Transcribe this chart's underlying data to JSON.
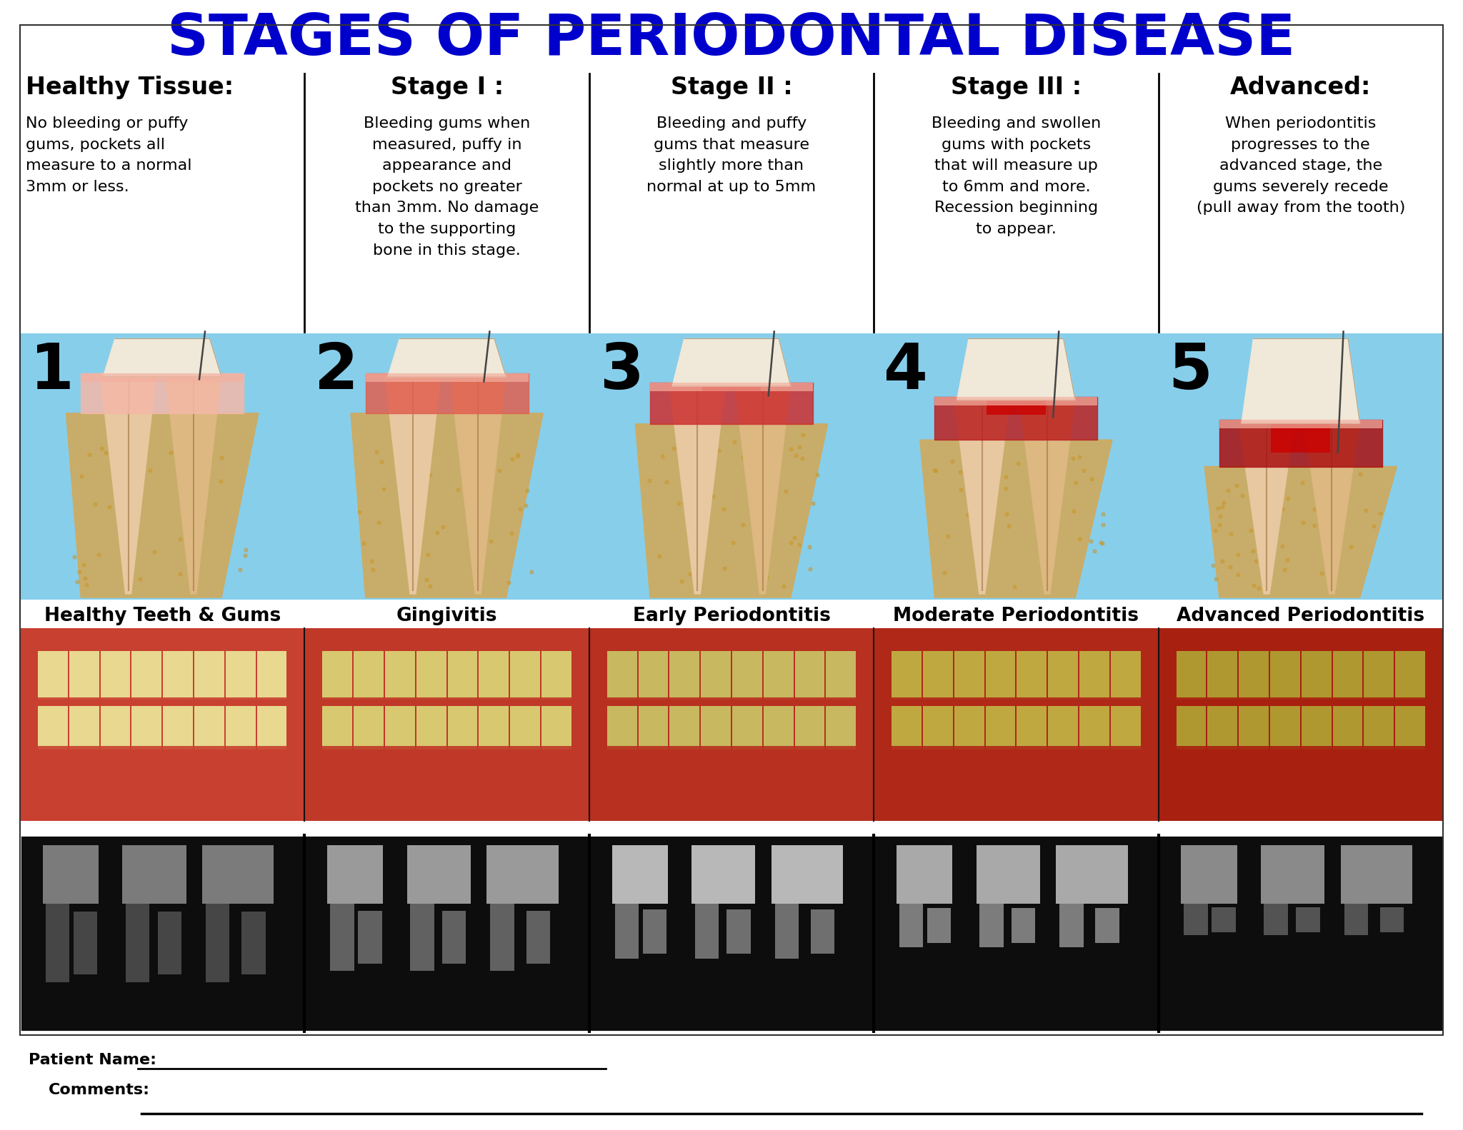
{
  "title": "STAGES OF PERIODONTAL DISEASE",
  "title_color": "#0000CC",
  "title_fontsize": 58,
  "bg_color": "#FFFFFF",
  "columns": [
    {
      "header": "Healthy Tissue:",
      "body": "No bleeding or puffy\ngums, pockets all\nmeasure to a normal\n3mm or less.",
      "stage_num": "1",
      "caption": "Healthy Teeth & Gums",
      "gum_color": "#F4B8A8",
      "blood_amount": 0,
      "recession": 0
    },
    {
      "header": "Stage I :",
      "body": "Bleeding gums when\nmeasured, puffy in\nappearance and\npockets no greater\nthan 3mm. No damage\nto the supporting\nbone in this stage.",
      "stage_num": "2",
      "caption": "Gingivitis",
      "gum_color": "#E06050",
      "blood_amount": 0.1,
      "recession": 0
    },
    {
      "header": "Stage II :",
      "body": "Bleeding and puffy\ngums that measure\nslightly more than\nnormal at up to 5mm",
      "stage_num": "3",
      "caption": "Early Periodontitis",
      "gum_color": "#CC3030",
      "blood_amount": 0.3,
      "recession": 0.1
    },
    {
      "header": "Stage III :",
      "body": "Bleeding and swollen\ngums with pockets\nthat will measure up\nto 6mm and more.\nRecession beginning\nto appear.",
      "stage_num": "4",
      "caption": "Moderate Periodontitis",
      "gum_color": "#BB2020",
      "blood_amount": 0.6,
      "recession": 0.25
    },
    {
      "header": "Advanced:",
      "body": "When periodontitis\nprogresses to the\nadvanced stage, the\ngums severely recede\n(pull away from the tooth)",
      "stage_num": "5",
      "caption": "Advanced Periodontitis",
      "gum_color": "#AA1010",
      "blood_amount": 1.0,
      "recession": 0.5
    }
  ],
  "patient_name_label": "Patient Name:",
  "comments_label": "Comments:",
  "illus_bg": "#87CEEB",
  "header_fontsize": 22,
  "body_fontsize": 16,
  "stage_num_fontsize": 64,
  "caption_fontsize": 19,
  "form_fontsize": 16
}
